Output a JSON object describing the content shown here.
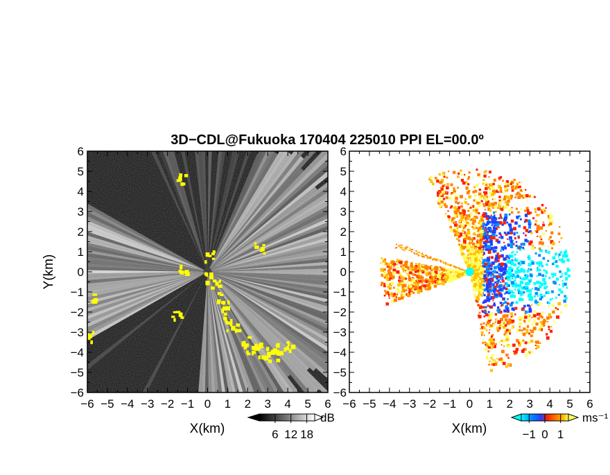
{
  "chart_data": [
    {
      "type": "heatmap",
      "panel": "left",
      "title": "3D−CDL@Fukuoka 170404 225010 PPI EL=00.0º",
      "xlabel": "X(km)",
      "ylabel": "Y(km)",
      "xlim": [
        -6,
        6
      ],
      "ylim": [
        -6,
        6
      ],
      "ticks": [
        "−6",
        "−5",
        "−4",
        "−3",
        "−2",
        "−1",
        "0",
        "1",
        "2",
        "3",
        "4",
        "5",
        "6"
      ],
      "colorbar": {
        "unit": "dB",
        "tick_labels": [
          "6",
          "12",
          "18"
        ],
        "tick_values": [
          6,
          12,
          18
        ],
        "range": [
          0,
          21
        ],
        "colors": [
          "#000000",
          "#555555",
          "#aaaaaa",
          "#ffffff"
        ],
        "highlight_color": "#ffff00"
      }
    },
    {
      "type": "heatmap",
      "panel": "right",
      "xlabel": "X(km)",
      "xlim": [
        -6,
        6
      ],
      "ylim": [
        -6,
        6
      ],
      "ticks": [
        "−6",
        "−5",
        "−4",
        "−3",
        "−2",
        "−1",
        "0",
        "1",
        "2",
        "3",
        "4",
        "5",
        "6"
      ],
      "colorbar": {
        "unit": "ms⁻¹",
        "tick_labels": [
          "−1",
          "0",
          "1"
        ],
        "tick_values": [
          -1,
          0,
          1
        ],
        "range": [
          -1.5,
          1.5
        ],
        "colors": [
          "#00ffff",
          "#0090ff",
          "#2040ff",
          "#ff2000",
          "#ff8000",
          "#ffc000",
          "#ffff60"
        ]
      }
    }
  ]
}
